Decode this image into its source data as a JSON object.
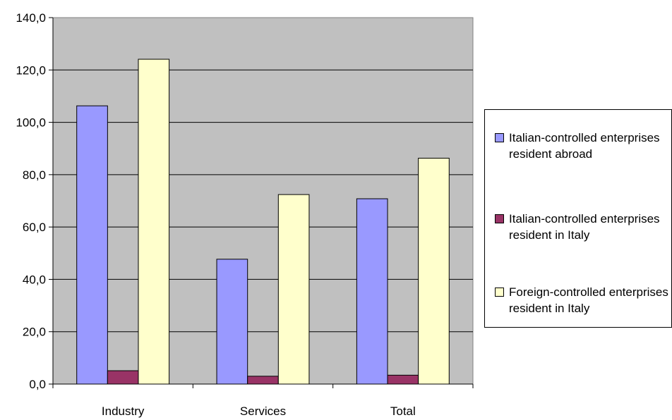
{
  "chart_data": {
    "type": "bar",
    "categories": [
      "Industry",
      "Services",
      "Total"
    ],
    "series": [
      {
        "name": "Italian-controlled enterprises resident abroad",
        "values": [
          106.3,
          47.7,
          70.8
        ],
        "color": "#9999ff"
      },
      {
        "name": "Italian-controlled enterprises resident in Italy",
        "values": [
          5.1,
          3.0,
          3.4
        ],
        "color": "#993366"
      },
      {
        "name": "Foreign-controlled enterprises resident in Italy",
        "values": [
          124.1,
          72.4,
          86.3
        ],
        "color": "#ffffcc"
      }
    ],
    "yticks": [
      "0,0",
      "20,0",
      "40,0",
      "60,0",
      "80,0",
      "100,0",
      "120,0",
      "140,0"
    ],
    "ylim": [
      0,
      140
    ],
    "plot_background": "#c0c0c0",
    "grid": true,
    "legend_position": "right"
  }
}
